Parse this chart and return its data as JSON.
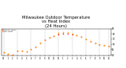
{
  "title": "Milwaukee Outdoor Temperature\nvs Heat Index\n(24 Hours)",
  "title_fontsize": 3.8,
  "hours": [
    0,
    1,
    2,
    3,
    4,
    5,
    6,
    7,
    8,
    9,
    10,
    11,
    12,
    13,
    14,
    15,
    16,
    17,
    18,
    19,
    20,
    21,
    22,
    23
  ],
  "temperature": [
    45,
    42,
    40,
    48,
    47,
    46,
    50,
    55,
    62,
    68,
    73,
    76,
    79,
    80,
    80,
    79,
    77,
    74,
    70,
    65,
    62,
    60,
    58,
    56
  ],
  "heat_index": [
    45,
    42,
    40,
    48,
    47,
    46,
    50,
    55,
    62,
    68,
    73,
    76,
    82,
    84,
    83,
    80,
    77,
    74,
    70,
    65,
    62,
    60,
    58,
    56
  ],
  "temp_color": "#ff0000",
  "hi_color": "#ffa500",
  "bg_color": "#ffffff",
  "grid_color": "#999999",
  "ylim": [
    38,
    90
  ],
  "yticks": [
    40,
    50,
    60,
    70,
    80,
    90
  ],
  "xlim": [
    -0.5,
    23.5
  ],
  "xtick_labels": [
    "12",
    "1",
    "2",
    "3",
    "4",
    "5",
    "6",
    "7",
    "8",
    "9",
    "10",
    "11",
    "12",
    "1",
    "2",
    "3",
    "4",
    "5",
    "6",
    "7",
    "8",
    "9",
    "10",
    "11"
  ],
  "dot_size": 1.2,
  "legend_temp": "Outdoor Temp",
  "legend_hi": "Heat Index",
  "vgrid_every": [
    0,
    3,
    6,
    9,
    12,
    15,
    18,
    21,
    23
  ]
}
